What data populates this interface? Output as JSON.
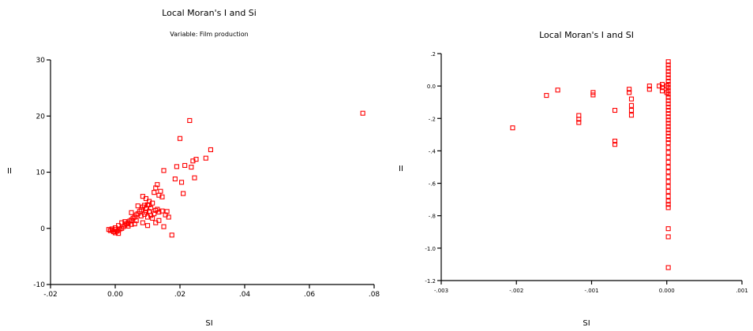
{
  "colors": {
    "marker": "#ff0000",
    "axis": "#000000",
    "background": "#ffffff"
  },
  "chart_data": [
    {
      "type": "scatter",
      "title": "Local Moran's I and Si",
      "subtitle": "Variable: Film production",
      "xlabel": "SI",
      "ylabel": "II",
      "xlim": [
        -0.02,
        0.08
      ],
      "ylim": [
        -10,
        30
      ],
      "xticks": [
        -0.02,
        0.0,
        0.02,
        0.04,
        0.06,
        0.08
      ],
      "xtick_labels": [
        "-.02",
        "0.00",
        ".02",
        ".04",
        ".06",
        ".08"
      ],
      "yticks": [
        -10,
        0,
        10,
        20,
        30
      ],
      "ytick_labels": [
        "-10",
        "0",
        "10",
        "20",
        "30"
      ],
      "grid": false,
      "marker": "open-square",
      "points": [
        [
          -0.002,
          -0.2
        ],
        [
          -0.0015,
          -0.4
        ],
        [
          -0.001,
          -0.3
        ],
        [
          -0.0005,
          -0.6
        ],
        [
          0.0,
          -0.8
        ],
        [
          0.0,
          -0.2
        ],
        [
          0.0005,
          -0.5
        ],
        [
          0.001,
          -0.9
        ],
        [
          -0.001,
          -0.1
        ],
        [
          0.0,
          0.1
        ],
        [
          0.001,
          -0.4
        ],
        [
          0.0015,
          -0.1
        ],
        [
          0.002,
          0.0
        ],
        [
          0.0025,
          0.3
        ],
        [
          0.003,
          0.6
        ],
        [
          0.0035,
          0.8
        ],
        [
          0.004,
          1.0
        ],
        [
          0.0045,
          1.3
        ],
        [
          0.005,
          1.5
        ],
        [
          0.005,
          0.7
        ],
        [
          0.0055,
          1.8
        ],
        [
          0.006,
          2.0
        ],
        [
          0.0065,
          2.4
        ],
        [
          0.007,
          2.6
        ],
        [
          0.0075,
          3.0
        ],
        [
          0.008,
          3.3
        ],
        [
          0.0085,
          3.8
        ],
        [
          0.009,
          4.1
        ],
        [
          0.0095,
          3.5
        ],
        [
          0.01,
          4.2
        ],
        [
          0.0105,
          3.0
        ],
        [
          0.011,
          3.6
        ],
        [
          0.0115,
          4.5
        ],
        [
          0.012,
          6.4
        ],
        [
          0.0125,
          7.2
        ],
        [
          0.013,
          7.8
        ],
        [
          0.0135,
          5.9
        ],
        [
          0.014,
          6.6
        ],
        [
          0.0145,
          5.6
        ],
        [
          0.015,
          10.3
        ],
        [
          0.016,
          3.0
        ],
        [
          0.0175,
          -1.2
        ],
        [
          0.0185,
          8.8
        ],
        [
          0.019,
          11.0
        ],
        [
          0.02,
          16.0
        ],
        [
          0.0205,
          8.2
        ],
        [
          0.021,
          6.2
        ],
        [
          0.0215,
          11.2
        ],
        [
          0.023,
          19.2
        ],
        [
          0.0235,
          10.9
        ],
        [
          0.024,
          12.0
        ],
        [
          0.0245,
          9.0
        ],
        [
          0.025,
          12.3
        ],
        [
          0.028,
          12.5
        ],
        [
          0.0295,
          14.0
        ],
        [
          0.0765,
          20.5
        ],
        [
          0.001,
          0.5
        ],
        [
          0.002,
          1.0
        ],
        [
          0.003,
          1.2
        ],
        [
          0.004,
          0.4
        ],
        [
          0.005,
          2.8
        ],
        [
          0.006,
          0.8
        ],
        [
          0.007,
          4.0
        ],
        [
          0.0065,
          1.4
        ],
        [
          0.008,
          2.2
        ],
        [
          0.0085,
          1.0
        ],
        [
          0.009,
          2.5
        ],
        [
          0.0095,
          2.9
        ],
        [
          0.01,
          2.0
        ],
        [
          0.0105,
          4.8
        ],
        [
          0.011,
          2.3
        ],
        [
          0.012,
          2.6
        ],
        [
          0.0125,
          3.2
        ],
        [
          0.0135,
          2.9
        ],
        [
          0.0145,
          3.1
        ],
        [
          0.0115,
          1.8
        ],
        [
          0.013,
          3.4
        ],
        [
          0.0085,
          5.7
        ],
        [
          0.0095,
          5.3
        ],
        [
          0.0105,
          4.2
        ],
        [
          0.01,
          0.5
        ],
        [
          0.0125,
          1.0
        ],
        [
          0.0135,
          1.4
        ],
        [
          0.015,
          0.3
        ],
        [
          0.0165,
          2.0
        ],
        [
          0.0155,
          2.4
        ]
      ]
    },
    {
      "type": "scatter",
      "title": "Local Moran's I and SI",
      "xlabel": "SI",
      "ylabel": "II",
      "xlim": [
        -0.003,
        0.001
      ],
      "ylim": [
        -1.2,
        0.2
      ],
      "xticks": [
        -0.003,
        -0.002,
        -0.001,
        0.0,
        0.001
      ],
      "xtick_labels": [
        "-.003",
        "-.002",
        "-.001",
        "0.000",
        ".001"
      ],
      "yticks": [
        -1.2,
        -1.0,
        -0.8,
        -0.6,
        -0.4,
        -0.2,
        0.0,
        0.2
      ],
      "ytick_labels": [
        "-1.2",
        "-1.0",
        "-.8",
        "-.6",
        "-.4",
        "-.2",
        "0.0",
        ".2"
      ],
      "grid": false,
      "marker": "open-square",
      "points": [
        [
          -0.00205,
          -0.258
        ],
        [
          -0.0016,
          -0.058
        ],
        [
          -0.00145,
          -0.025
        ],
        [
          -0.00117,
          -0.182
        ],
        [
          -0.00117,
          -0.205
        ],
        [
          -0.00117,
          -0.225
        ],
        [
          -0.00098,
          -0.04
        ],
        [
          -0.00098,
          -0.055
        ],
        [
          -0.00069,
          -0.15
        ],
        [
          -0.00069,
          -0.34
        ],
        [
          -0.00069,
          -0.36
        ],
        [
          -0.0005,
          -0.02
        ],
        [
          -0.0005,
          -0.04
        ],
        [
          -0.00047,
          -0.08
        ],
        [
          -0.00047,
          -0.12
        ],
        [
          -0.00047,
          -0.15
        ],
        [
          -0.00047,
          -0.18
        ],
        [
          -0.00023,
          0.0
        ],
        [
          -0.00023,
          -0.02
        ],
        [
          -0.0001,
          0.0
        ],
        [
          -6e-05,
          0.01
        ],
        [
          -6e-05,
          -0.01
        ],
        [
          -6e-05,
          -0.03
        ],
        [
          0.0,
          -0.04
        ],
        [
          0.0,
          0.0
        ],
        [
          2e-05,
          0.15
        ],
        [
          2e-05,
          0.13
        ],
        [
          2e-05,
          0.11
        ],
        [
          2e-05,
          0.09
        ],
        [
          2e-05,
          0.07
        ],
        [
          2e-05,
          0.05
        ],
        [
          2e-05,
          0.03
        ],
        [
          2e-05,
          0.01
        ],
        [
          2e-05,
          -0.01
        ],
        [
          2e-05,
          -0.03
        ],
        [
          2e-05,
          -0.05
        ],
        [
          2e-05,
          -0.07
        ],
        [
          2e-05,
          -0.09
        ],
        [
          2e-05,
          -0.11
        ],
        [
          2e-05,
          -0.13
        ],
        [
          2e-05,
          -0.15
        ],
        [
          2e-05,
          -0.17
        ],
        [
          2e-05,
          -0.19
        ],
        [
          2e-05,
          -0.21
        ],
        [
          2e-05,
          -0.23
        ],
        [
          2e-05,
          -0.25
        ],
        [
          2e-05,
          -0.27
        ],
        [
          2e-05,
          -0.29
        ],
        [
          2e-05,
          -0.31
        ],
        [
          2e-05,
          -0.33
        ],
        [
          2e-05,
          -0.35
        ],
        [
          2e-05,
          -0.38
        ],
        [
          2e-05,
          -0.41
        ],
        [
          2e-05,
          -0.44
        ],
        [
          2e-05,
          -0.47
        ],
        [
          2e-05,
          -0.5
        ],
        [
          2e-05,
          -0.53
        ],
        [
          2e-05,
          -0.56
        ],
        [
          2e-05,
          -0.59
        ],
        [
          2e-05,
          -0.62
        ],
        [
          2e-05,
          -0.65
        ],
        [
          2e-05,
          -0.68
        ],
        [
          2e-05,
          -0.71
        ],
        [
          2e-05,
          -0.73
        ],
        [
          2e-05,
          -0.75
        ],
        [
          2e-05,
          -0.88
        ],
        [
          2e-05,
          -0.93
        ],
        [
          2e-05,
          -1.12
        ]
      ]
    }
  ]
}
